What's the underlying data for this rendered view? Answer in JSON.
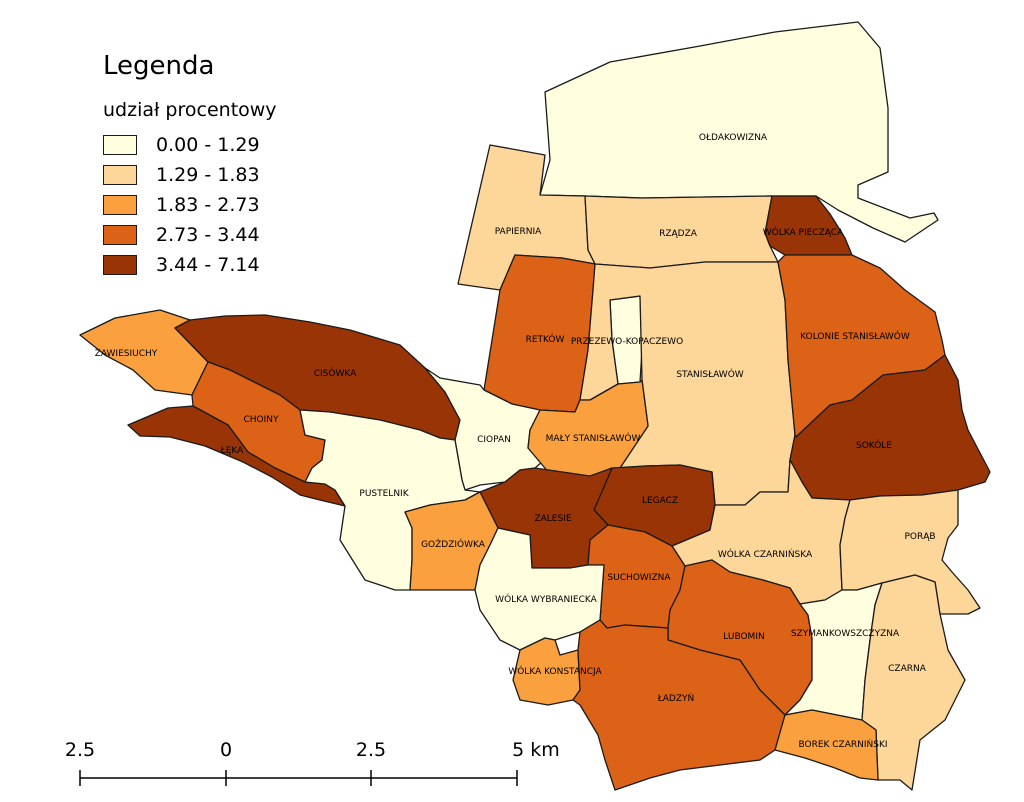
{
  "legend": {
    "title": "Legenda",
    "subtitle": "udział procentowy",
    "classes": [
      {
        "label": "0.00 - 1.29",
        "color": "#ffffe0"
      },
      {
        "label": "1.29 - 1.83",
        "color": "#fdd69a"
      },
      {
        "label": "1.83 - 2.73",
        "color": "#fba03f"
      },
      {
        "label": "2.73 - 3.44",
        "color": "#dc6217"
      },
      {
        "label": "3.44 - 7.14",
        "color": "#993406"
      }
    ]
  },
  "scale_bar": {
    "ticks": [
      "2.5",
      "0",
      "2.5",
      "5 km"
    ]
  },
  "regions": [
    {
      "key": "oldakowizna",
      "name": "OŁDAKOWIZNA",
      "class": 0
    },
    {
      "key": "papiernia",
      "name": "PAPIERNIA",
      "class": 1
    },
    {
      "key": "rzadza",
      "name": "RZĄDZA",
      "class": 1
    },
    {
      "key": "wolka_pieczaca",
      "name": "WÓLKA PIECZĄCA",
      "class": 4
    },
    {
      "key": "retkow",
      "name": "RETKÓW",
      "class": 3
    },
    {
      "key": "przezewo",
      "name": "PRZEZEWO-KOPACZEWO",
      "class": 0
    },
    {
      "key": "stanislawow",
      "name": "STANISŁAWÓW",
      "class": 1
    },
    {
      "key": "kolonie_stanislawow",
      "name": "KOLONIE STANISŁAWÓW",
      "class": 3
    },
    {
      "key": "zawiesiuchy",
      "name": "ZAWIESIUCHY",
      "class": 2
    },
    {
      "key": "cisowka",
      "name": "CISÓWKA",
      "class": 4
    },
    {
      "key": "choiny",
      "name": "CHOINY",
      "class": 3
    },
    {
      "key": "leka",
      "name": "ŁĘKA",
      "class": 4
    },
    {
      "key": "ciopan",
      "name": "CIOPAN",
      "class": 0
    },
    {
      "key": "maly_stanislawow",
      "name": "MAŁY STANISŁAWÓW",
      "class": 2
    },
    {
      "key": "sokole",
      "name": "SOKÓLE",
      "class": 4
    },
    {
      "key": "pustelnik",
      "name": "PUSTELNIK",
      "class": 0
    },
    {
      "key": "legacz",
      "name": "LEGACZ",
      "class": 4
    },
    {
      "key": "zalesie",
      "name": "ZALESIE",
      "class": 4
    },
    {
      "key": "gozdziowka",
      "name": "GOŹDZIÓWKA",
      "class": 2
    },
    {
      "key": "wolka_czarninska",
      "name": "WÓLKA CZARNIŃSKA",
      "class": 1
    },
    {
      "key": "porab",
      "name": "PORĄB",
      "class": 1
    },
    {
      "key": "suchowizna",
      "name": "SUCHOWIZNA",
      "class": 3
    },
    {
      "key": "wolka_wybraniecka",
      "name": "WÓLKA WYBRANIECKA",
      "class": 0
    },
    {
      "key": "lubomin",
      "name": "LUBOMIN",
      "class": 3
    },
    {
      "key": "szymankowszczyzna",
      "name": "SZYMANKOWSZCZYZNA",
      "class": 0
    },
    {
      "key": "czarna",
      "name": "CZARNA",
      "class": 1
    },
    {
      "key": "wolka_konstancja",
      "name": "WÓLKA KONSTANCJA",
      "class": 2
    },
    {
      "key": "ladzyn",
      "name": "ŁADZYŃ",
      "class": 3
    },
    {
      "key": "borek_czarninski",
      "name": "BOREK CZARNIŃSKI",
      "class": 2
    }
  ]
}
